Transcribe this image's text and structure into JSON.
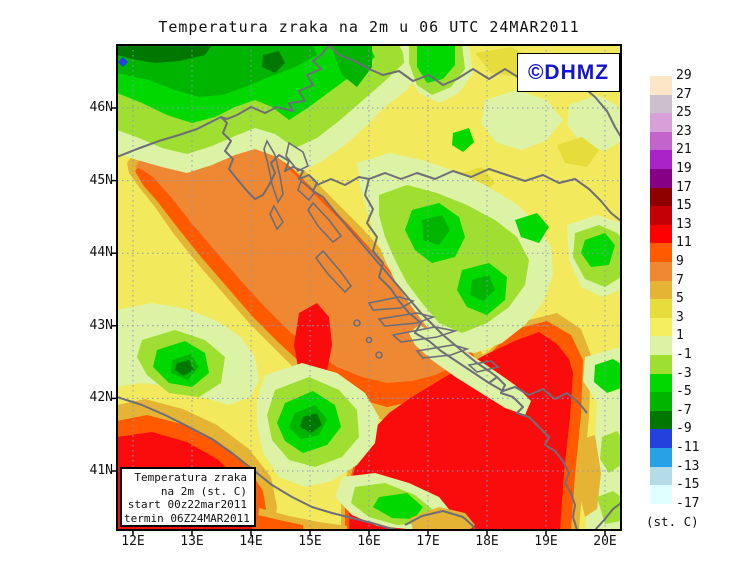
{
  "title": "Temperatura zraka na 2m u 06 UTC 24MAR2011",
  "watermark": "©DHMZ",
  "legend_box": {
    "lines": [
      "Temperatura zraka",
      "na 2m (st. C)",
      "start 00z22mar2011",
      "termin 06Z24MAR2011"
    ]
  },
  "axes": {
    "lat": [
      "46N",
      "45N",
      "44N",
      "43N",
      "42N",
      "41N"
    ],
    "lon": [
      "12E",
      "13E",
      "14E",
      "15E",
      "16E",
      "17E",
      "18E",
      "19E",
      "20E"
    ]
  },
  "colorbar": {
    "unit_label": "(st. C)",
    "entries": [
      {
        "label": "29",
        "color": "#FCE6C8"
      },
      {
        "label": "27",
        "color": "#CCC0CC"
      },
      {
        "label": "25",
        "color": "#D89FD8"
      },
      {
        "label": "23",
        "color": "#C364CD"
      },
      {
        "label": "21",
        "color": "#A823C8"
      },
      {
        "label": "19",
        "color": "#860086"
      },
      {
        "label": "17",
        "color": "#8E0000"
      },
      {
        "label": "15",
        "color": "#C40000"
      },
      {
        "label": "13",
        "color": "#FF0000"
      },
      {
        "label": "11",
        "color": "#FF5A00"
      },
      {
        "label": "9",
        "color": "#EE8833"
      },
      {
        "label": "7",
        "color": "#E6B434"
      },
      {
        "label": "5",
        "color": "#E6DC3C"
      },
      {
        "label": "3",
        "color": "#F5EE5F"
      },
      {
        "label": "1",
        "color": "#DCF2A5"
      },
      {
        "label": "-1",
        "color": "#9EDF32"
      },
      {
        "label": "-3",
        "color": "#00D800"
      },
      {
        "label": "-5",
        "color": "#00B400"
      },
      {
        "label": "-7",
        "color": "#007800"
      },
      {
        "label": "-9",
        "color": "#2341DC"
      },
      {
        "label": "-11",
        "color": "#28A0E6"
      },
      {
        "label": "-13",
        "color": "#B4DCE6"
      },
      {
        "label": "-15",
        "color": "#E0FFFF"
      },
      {
        "label": "-17",
        "color": null
      }
    ]
  },
  "map": {
    "palette": {
      "base_yellow": "#F2EA5C",
      "pale_green": "#DCF2A5",
      "yellow_green": "#9EDF32",
      "bright_green": "#00D800",
      "green": "#00B400",
      "dark_green": "#007800",
      "golden": "#E6B434",
      "dark_yellow": "#E6DC3C",
      "orange": "#EE8833",
      "orange_red": "#FF5A00",
      "red": "#FB0C0C",
      "cold_blue": "#2341DC",
      "coast_gray": "#6E6E78",
      "grid_blue": "#8A94C8",
      "frame_black": "#000000",
      "watermark_blue": "#1414CC"
    }
  }
}
